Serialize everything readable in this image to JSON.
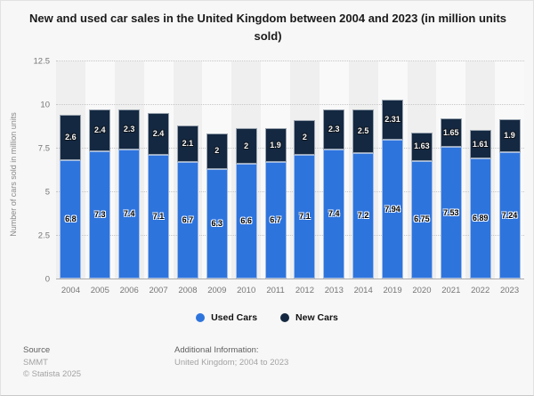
{
  "title": "New and used car sales in the United Kingdom between 2004 and 2023 (in million units sold)",
  "chart_data": {
    "type": "bar",
    "stacked": true,
    "categories": [
      "2004",
      "2005",
      "2006",
      "2007",
      "2008",
      "2009",
      "2010",
      "2011",
      "2012",
      "2013",
      "2014",
      "2019",
      "2020",
      "2021",
      "2022",
      "2023"
    ],
    "series": [
      {
        "name": "Used Cars",
        "color": "#2e74dd",
        "values": [
          6.8,
          7.3,
          7.4,
          7.1,
          6.7,
          6.3,
          6.6,
          6.7,
          7.1,
          7.4,
          7.2,
          7.94,
          6.75,
          7.53,
          6.89,
          7.24
        ],
        "labels": [
          "6.8",
          "7.3",
          "7.4",
          "7.1",
          "6.7",
          "6.3",
          "6.6",
          "6.7",
          "7.1",
          "7.4",
          "7.2",
          "7.94",
          "6.75",
          "7.53",
          "6.89",
          "7.24"
        ]
      },
      {
        "name": "New Cars",
        "color": "#142841",
        "values": [
          2.6,
          2.4,
          2.3,
          2.4,
          2.1,
          2,
          2,
          1.9,
          2,
          2.3,
          2.5,
          2.31,
          1.63,
          1.65,
          1.61,
          1.9
        ],
        "labels": [
          "2.6",
          "2.4",
          "2.3",
          "2.4",
          "2.1",
          "2",
          "2",
          "1.9",
          "2",
          "2.3",
          "2.5",
          "2.31",
          "1.63",
          "1.65",
          "1.61",
          "1.9"
        ]
      }
    ],
    "title": "New and used car sales in the United Kingdom between 2004 and 2023 (in million units sold)",
    "xlabel": "",
    "ylabel": "Number of cars sold in million units",
    "ylim": [
      0,
      12.5
    ],
    "yticks": [
      0,
      2.5,
      5,
      7.5,
      10,
      12.5
    ],
    "ytick_labels": [
      "0",
      "2.5",
      "5",
      "7.5",
      "10",
      "12.5"
    ],
    "grid": true,
    "legend_position": "bottom"
  },
  "legend": [
    {
      "label": "Used Cars",
      "color": "#2e74dd"
    },
    {
      "label": "New Cars",
      "color": "#142841"
    }
  ],
  "footer": {
    "source_label": "Source",
    "source_value": "SMMT",
    "copyright": "© Statista 2025",
    "additional_label": "Additional Information:",
    "additional_value": "United Kingdom; 2004 to 2023"
  }
}
